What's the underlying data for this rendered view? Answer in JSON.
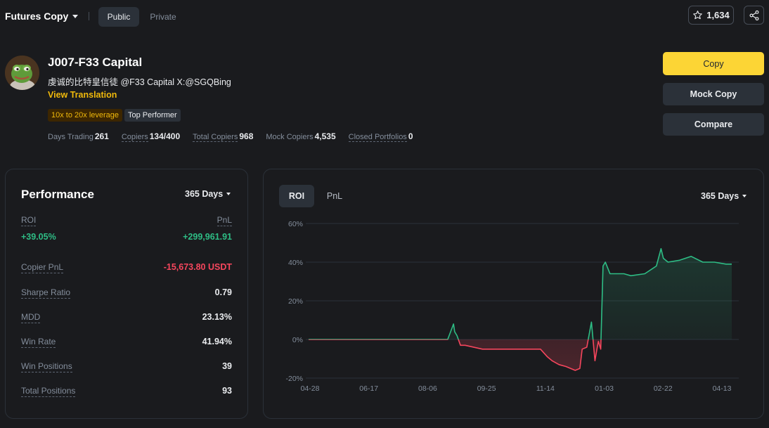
{
  "topbar": {
    "title": "Futures Copy",
    "tabs": [
      "Public",
      "Private"
    ],
    "favorites_count": "1,634"
  },
  "profile": {
    "name": "J007-F33 Capital",
    "bio": "虔诚的比特皇信徒 @F33 Capital X:@SGQBing",
    "translate_label": "View Translation",
    "badges": [
      "10x to 20x leverage",
      "Top Performer"
    ],
    "stats": [
      {
        "label": "Days Trading",
        "value": "261"
      },
      {
        "label": "Copiers",
        "value": "134/400"
      },
      {
        "label": "Total Copiers",
        "value": "968"
      },
      {
        "label": "Mock Copiers",
        "value": "4,535"
      },
      {
        "label": "Closed Portfolios",
        "value": "0"
      }
    ]
  },
  "actions": {
    "copy": "Copy",
    "mock_copy": "Mock Copy",
    "compare": "Compare"
  },
  "performance": {
    "title": "Performance",
    "period": "365 Days",
    "roi_label": "ROI",
    "roi_value": "+39.05%",
    "pnl_label": "PnL",
    "pnl_value": "+299,961.91",
    "rows": [
      {
        "label": "Copier PnL",
        "value": "-15,673.80 USDT"
      },
      {
        "label": "Sharpe Ratio",
        "value": "0.79"
      },
      {
        "label": "MDD",
        "value": "23.13%"
      },
      {
        "label": "Win Rate",
        "value": "41.94%"
      },
      {
        "label": "Win Positions",
        "value": "39"
      },
      {
        "label": "Total Positions",
        "value": "93"
      }
    ]
  },
  "chart_panel": {
    "tabs": [
      "ROI",
      "PnL"
    ],
    "period": "365 Days"
  },
  "chart_data": {
    "type": "line",
    "title": "",
    "xlabel": "",
    "ylabel": "",
    "x_ticks": [
      "04-28",
      "06-17",
      "08-06",
      "09-25",
      "11-14",
      "01-03",
      "02-22",
      "04-13"
    ],
    "y_ticks": [
      "60%",
      "40%",
      "20%",
      "0%",
      "-20%"
    ],
    "ylim": [
      -20,
      60
    ],
    "grid": true,
    "colors": {
      "positive": "#2ebd85",
      "negative": "#f6465d"
    },
    "x": [
      0,
      60,
      100,
      120,
      125,
      126,
      128,
      131,
      135,
      150,
      160,
      180,
      200,
      206,
      210,
      216,
      222,
      230,
      234,
      236,
      240,
      244,
      247,
      249,
      250,
      252,
      254,
      256,
      260,
      266,
      272,
      278,
      290,
      300,
      304,
      306,
      310,
      320,
      330,
      340,
      350,
      360,
      365
    ],
    "y": [
      0,
      0,
      0,
      0,
      8,
      4,
      2,
      -3,
      -3,
      -5,
      -5,
      -5,
      -5,
      -9,
      -11,
      -13,
      -14,
      -16,
      -15,
      -5,
      -4,
      9,
      -11,
      -4,
      -1,
      -5,
      38,
      40,
      34,
      34,
      34,
      33,
      34,
      38,
      47,
      42,
      40,
      41,
      43,
      40,
      40,
      39,
      39
    ]
  }
}
